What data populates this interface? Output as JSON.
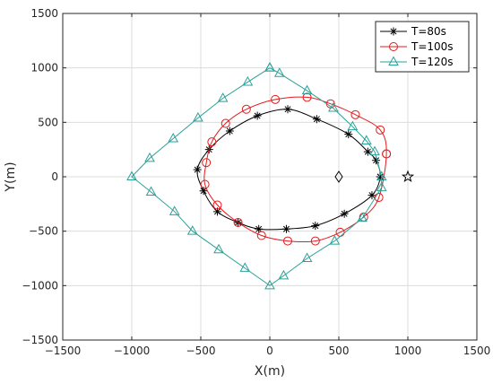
{
  "chart_data": {
    "type": "line",
    "xlabel": "X(m)",
    "ylabel": "Y(m)",
    "xlim": [
      -1500,
      1500
    ],
    "ylim": [
      -1500,
      1500
    ],
    "xticks": [
      "-1500",
      "-1000",
      "-500",
      "0",
      "500",
      "1000",
      "1500"
    ],
    "yticks": [
      "-1500",
      "-1000",
      "-500",
      "0",
      "500",
      "1000",
      "1500"
    ],
    "grid": true,
    "legend_position": "top-right",
    "colors": {
      "T=80s": "#000000",
      "T=100s": "#e41a1c",
      "T=120s": "#2aa198"
    },
    "series": [
      {
        "name": "T=80s",
        "marker": "asterisk",
        "color": "#000000",
        "x": [
          800,
          770,
          710,
          570,
          340,
          130,
          -90,
          -290,
          -440,
          -525,
          -480,
          -380,
          -230,
          -80,
          120,
          330,
          540,
          740,
          800
        ],
        "y": [
          0,
          150,
          230,
          390,
          530,
          620,
          560,
          420,
          250,
          65,
          -130,
          -320,
          -420,
          -480,
          -480,
          -450,
          -340,
          -170,
          0
        ]
      },
      {
        "name": "T=100s",
        "marker": "circle",
        "color": "#e41a1c",
        "x": [
          845,
          800,
          620,
          440,
          270,
          40,
          -170,
          -320,
          -420,
          -460,
          -470,
          -380,
          -230,
          -60,
          130,
          330,
          510,
          680,
          790,
          845
        ],
        "y": [
          210,
          430,
          570,
          670,
          730,
          710,
          620,
          490,
          320,
          130,
          -70,
          -260,
          -420,
          -540,
          -590,
          -590,
          -510,
          -370,
          -190,
          210
        ]
      },
      {
        "name": "T=120s",
        "marker": "triangle",
        "color": "#2aa198",
        "x": [
          0,
          70,
          270,
          460,
          600,
          700,
          760,
          810,
          810,
          670,
          470,
          270,
          100,
          0,
          -180,
          -370,
          -560,
          -690,
          -860,
          -1000,
          -870,
          -700,
          -520,
          -340,
          -160,
          0
        ],
        "y": [
          1000,
          950,
          790,
          630,
          460,
          330,
          230,
          0,
          -100,
          -380,
          -590,
          -750,
          -910,
          -1000,
          -840,
          -670,
          -500,
          -320,
          -140,
          0,
          170,
          350,
          540,
          720,
          870,
          1000
        ]
      },
      {
        "name": "",
        "marker": "diamond",
        "color": "#000000",
        "x": [
          500
        ],
        "y": [
          0
        ]
      },
      {
        "name": "",
        "marker": "star",
        "color": "#000000",
        "x": [
          1000
        ],
        "y": [
          0
        ]
      }
    ]
  }
}
